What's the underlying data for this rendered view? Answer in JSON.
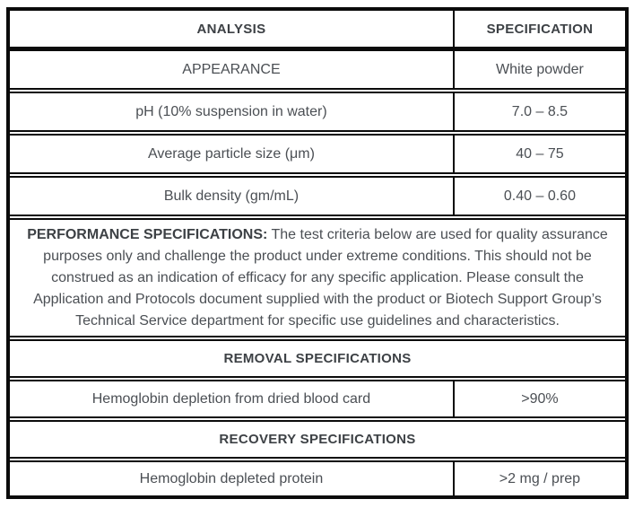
{
  "table": {
    "columns": {
      "analysis": "ANALYSIS",
      "specification": "SPECIFICATION"
    },
    "rows": [
      {
        "analysis": "APPEARANCE",
        "specification": "White powder"
      },
      {
        "analysis": "pH (10% suspension in water)",
        "specification": "7.0 – 8.5"
      },
      {
        "analysis": "Average particle size (μm)",
        "specification": "40 – 75"
      },
      {
        "analysis": "Bulk density (gm/mL)",
        "specification": "0.40 – 0.60"
      }
    ],
    "performance_note": {
      "label": "PERFORMANCE SPECIFICATIONS:",
      "text": " The test criteria below are used for quality assurance purposes only and challenge the product under extreme conditions. This should not be construed as an indication of efficacy for any specific application. Please consult the Application and Protocols document supplied with the product or Biotech Support Group’s Technical Service department for specific use guidelines and characteristics."
    },
    "sections": [
      {
        "title": "REMOVAL SPECIFICATIONS",
        "row": {
          "analysis": "Hemoglobin depletion from dried blood card",
          "specification": ">90%"
        }
      },
      {
        "title": "RECOVERY SPECIFICATIONS",
        "row": {
          "analysis": "Hemoglobin depleted protein",
          "specification": ">2 mg / prep"
        }
      }
    ],
    "colors": {
      "border": "#0b0b0b",
      "heading_text": "#3d4145",
      "body_text": "#4b4f54",
      "background": "#ffffff"
    }
  }
}
